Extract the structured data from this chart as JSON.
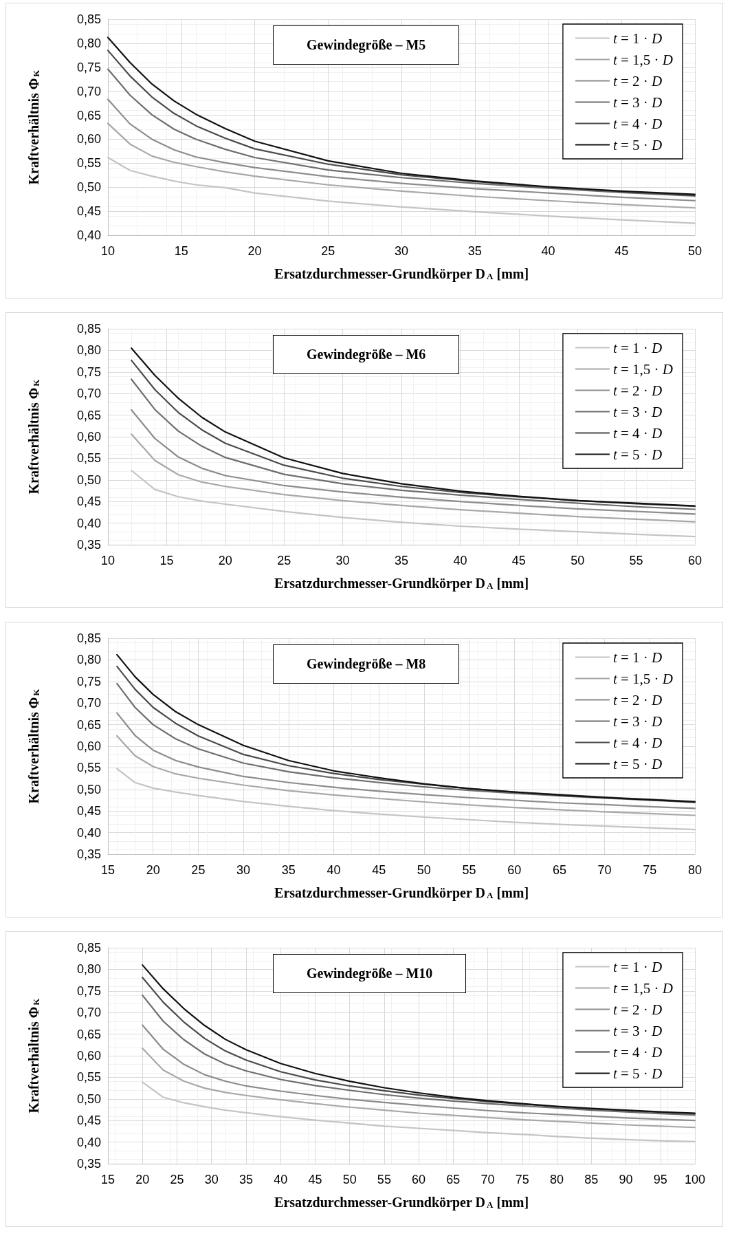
{
  "chart_data": [
    {
      "type": "line",
      "title": "Gewindegröße – M5",
      "xlabel": "Ersatzdurchmesser-Grundkörper D$_{A}$ [mm]",
      "ylabel": "Kraftverhältnis Φ$_{K}$",
      "legend": "top right",
      "grid": true,
      "line_style": "solid",
      "x": [
        10,
        11.5,
        13,
        14.5,
        16,
        18,
        20,
        25,
        30,
        35,
        40,
        45,
        50
      ],
      "xlim": [
        10,
        50
      ],
      "xticks": [
        10,
        15,
        20,
        25,
        30,
        35,
        40,
        45,
        50
      ],
      "ylim": [
        0.4,
        0.85
      ],
      "yticks": [
        {
          "value": 0.4,
          "label": "0,40"
        },
        {
          "value": 0.45,
          "label": "0,45"
        },
        {
          "value": 0.5,
          "label": "0,50"
        },
        {
          "value": 0.55,
          "label": "0,55"
        },
        {
          "value": 0.6,
          "label": "0,60"
        },
        {
          "value": 0.65,
          "label": "0,65"
        },
        {
          "value": 0.7,
          "label": "0,70"
        },
        {
          "value": 0.75,
          "label": "0,75"
        },
        {
          "value": 0.8,
          "label": "0,80"
        },
        {
          "value": 0.85,
          "label": "0,85"
        }
      ],
      "series": [
        {
          "name": "t = 1 · D",
          "color": "#c4c4c4",
          "values": [
            0.562,
            0.535,
            0.523,
            0.513,
            0.505,
            0.499,
            0.488,
            0.471,
            0.459,
            0.449,
            0.44,
            0.432,
            0.425
          ]
        },
        {
          "name": "t = 1,5 · D",
          "color": "#a8a8a8",
          "values": [
            0.633,
            0.59,
            0.565,
            0.552,
            0.543,
            0.532,
            0.523,
            0.505,
            0.492,
            0.481,
            0.472,
            0.464,
            0.457
          ]
        },
        {
          "name": "t = 2 · D",
          "color": "#8c8c8c",
          "values": [
            0.683,
            0.632,
            0.6,
            0.578,
            0.563,
            0.551,
            0.541,
            0.522,
            0.508,
            0.497,
            0.488,
            0.479,
            0.472
          ]
        },
        {
          "name": "t = 3 · D",
          "color": "#6e6e6e",
          "values": [
            0.746,
            0.692,
            0.651,
            0.621,
            0.6,
            0.579,
            0.562,
            0.536,
            0.52,
            0.508,
            0.498,
            0.489,
            0.482
          ]
        },
        {
          "name": "t = 4 · D",
          "color": "#4a4a4a",
          "values": [
            0.785,
            0.732,
            0.688,
            0.654,
            0.628,
            0.602,
            0.58,
            0.548,
            0.526,
            0.512,
            0.5,
            0.491,
            0.483
          ]
        },
        {
          "name": "t = 5 · D",
          "color": "#111111",
          "values": [
            0.812,
            0.76,
            0.715,
            0.68,
            0.652,
            0.622,
            0.596,
            0.555,
            0.529,
            0.513,
            0.501,
            0.492,
            0.485
          ]
        }
      ]
    },
    {
      "type": "line",
      "title": "Gewindegröße – M6",
      "xlabel": "Ersatzdurchmesser-Grundkörper D$_{A}$ [mm]",
      "ylabel": "Kraftverhältnis Φ$_{K}$",
      "legend": "top right",
      "grid": true,
      "line_style": "solid",
      "x": [
        12,
        14,
        16,
        18,
        20,
        25,
        30,
        35,
        40,
        45,
        50,
        55,
        60
      ],
      "xlim": [
        10,
        60
      ],
      "xticks": [
        10,
        15,
        20,
        25,
        30,
        35,
        40,
        45,
        50,
        55,
        60
      ],
      "ylim": [
        0.35,
        0.85
      ],
      "yticks": [
        {
          "value": 0.35,
          "label": "0,35"
        },
        {
          "value": 0.4,
          "label": "0,40"
        },
        {
          "value": 0.45,
          "label": "0,45"
        },
        {
          "value": 0.5,
          "label": "0,50"
        },
        {
          "value": 0.55,
          "label": "0,55"
        },
        {
          "value": 0.6,
          "label": "0,60"
        },
        {
          "value": 0.65,
          "label": "0,65"
        },
        {
          "value": 0.7,
          "label": "0,70"
        },
        {
          "value": 0.75,
          "label": "0,75"
        },
        {
          "value": 0.8,
          "label": "0,80"
        },
        {
          "value": 0.85,
          "label": "0,85"
        }
      ],
      "series": [
        {
          "name": "t = 1 · D",
          "color": "#c4c4c4",
          "values": [
            0.522,
            0.478,
            0.461,
            0.451,
            0.444,
            0.427,
            0.413,
            0.402,
            0.393,
            0.386,
            0.38,
            0.374,
            0.369
          ]
        },
        {
          "name": "t = 1,5 · D",
          "color": "#a8a8a8",
          "values": [
            0.606,
            0.545,
            0.512,
            0.495,
            0.485,
            0.466,
            0.452,
            0.441,
            0.431,
            0.423,
            0.415,
            0.409,
            0.403
          ]
        },
        {
          "name": "t = 2 · D",
          "color": "#8c8c8c",
          "values": [
            0.662,
            0.596,
            0.553,
            0.527,
            0.51,
            0.487,
            0.472,
            0.46,
            0.45,
            0.441,
            0.433,
            0.427,
            0.421
          ]
        },
        {
          "name": "t = 3 · D",
          "color": "#6e6e6e",
          "values": [
            0.733,
            0.663,
            0.613,
            0.578,
            0.552,
            0.513,
            0.491,
            0.476,
            0.465,
            0.455,
            0.446,
            0.438,
            0.432
          ]
        },
        {
          "name": "t = 4 · D",
          "color": "#4a4a4a",
          "values": [
            0.777,
            0.709,
            0.656,
            0.616,
            0.585,
            0.534,
            0.504,
            0.485,
            0.471,
            0.461,
            0.452,
            0.445,
            0.439
          ]
        },
        {
          "name": "t = 5 · D",
          "color": "#111111",
          "values": [
            0.805,
            0.742,
            0.689,
            0.645,
            0.611,
            0.551,
            0.515,
            0.491,
            0.474,
            0.462,
            0.452,
            0.446,
            0.44
          ]
        }
      ]
    },
    {
      "type": "line",
      "title": "Gewindegröße – M8",
      "xlabel": "Ersatzdurchmesser-Grundkörper D$_{A}$ [mm]",
      "ylabel": "Kraftverhältnis Φ$_{K}$",
      "legend": "top right",
      "grid": true,
      "line_style": "solid",
      "x": [
        16,
        18,
        20,
        22.5,
        25,
        30,
        35,
        40,
        45,
        50,
        55,
        60,
        65,
        70,
        75,
        80
      ],
      "xlim": [
        15,
        80
      ],
      "xticks": [
        15,
        20,
        25,
        30,
        35,
        40,
        45,
        50,
        55,
        60,
        65,
        70,
        75,
        80
      ],
      "ylim": [
        0.35,
        0.85
      ],
      "yticks": [
        {
          "value": 0.35,
          "label": "0,35"
        },
        {
          "value": 0.4,
          "label": "0,40"
        },
        {
          "value": 0.45,
          "label": "0,45"
        },
        {
          "value": 0.5,
          "label": "0,50"
        },
        {
          "value": 0.55,
          "label": "0,55"
        },
        {
          "value": 0.6,
          "label": "0,60"
        },
        {
          "value": 0.65,
          "label": "0,65"
        },
        {
          "value": 0.7,
          "label": "0,70"
        },
        {
          "value": 0.75,
          "label": "0,75"
        },
        {
          "value": 0.8,
          "label": "0,80"
        },
        {
          "value": 0.85,
          "label": "0,85"
        }
      ],
      "series": [
        {
          "name": "t = 1 · D",
          "color": "#c4c4c4",
          "values": [
            0.548,
            0.516,
            0.503,
            0.494,
            0.486,
            0.472,
            0.461,
            0.451,
            0.443,
            0.436,
            0.43,
            0.424,
            0.419,
            0.415,
            0.411,
            0.407
          ]
        },
        {
          "name": "t = 1,5 · D",
          "color": "#a8a8a8",
          "values": [
            0.624,
            0.578,
            0.553,
            0.536,
            0.526,
            0.51,
            0.497,
            0.487,
            0.479,
            0.471,
            0.464,
            0.458,
            0.453,
            0.448,
            0.444,
            0.44
          ]
        },
        {
          "name": "t = 2 · D",
          "color": "#8c8c8c",
          "values": [
            0.677,
            0.625,
            0.591,
            0.567,
            0.552,
            0.53,
            0.516,
            0.505,
            0.496,
            0.488,
            0.481,
            0.475,
            0.469,
            0.465,
            0.46,
            0.456
          ]
        },
        {
          "name": "t = 3 · D",
          "color": "#6e6e6e",
          "values": [
            0.745,
            0.69,
            0.65,
            0.617,
            0.594,
            0.561,
            0.541,
            0.527,
            0.516,
            0.506,
            0.498,
            0.491,
            0.485,
            0.48,
            0.475,
            0.47
          ]
        },
        {
          "name": "t = 4 · D",
          "color": "#4a4a4a",
          "values": [
            0.785,
            0.732,
            0.69,
            0.653,
            0.624,
            0.581,
            0.555,
            0.537,
            0.523,
            0.512,
            0.502,
            0.494,
            0.488,
            0.482,
            0.477,
            0.472
          ]
        },
        {
          "name": "t = 5 · D",
          "color": "#111111",
          "values": [
            0.812,
            0.761,
            0.72,
            0.68,
            0.65,
            0.602,
            0.567,
            0.543,
            0.527,
            0.513,
            0.502,
            0.494,
            0.487,
            0.481,
            0.476,
            0.471
          ]
        }
      ]
    },
    {
      "type": "line",
      "title": "Gewindegröße – M10",
      "xlabel": "Ersatzdurchmesser-Grundkörper D$_{A}$ [mm]",
      "ylabel": "Kraftverhältnis Φ$_{K}$",
      "legend": "top right",
      "grid": true,
      "line_style": "solid",
      "x": [
        20,
        23,
        26,
        29,
        32,
        35,
        40,
        45,
        50,
        55,
        60,
        65,
        70,
        75,
        80,
        85,
        90,
        95,
        100
      ],
      "xlim": [
        15,
        100
      ],
      "xticks": [
        15,
        20,
        25,
        30,
        35,
        40,
        45,
        50,
        55,
        60,
        65,
        70,
        75,
        80,
        85,
        90,
        95,
        100
      ],
      "ylim": [
        0.35,
        0.85
      ],
      "yticks": [
        {
          "value": 0.35,
          "label": "0,35"
        },
        {
          "value": 0.4,
          "label": "0,40"
        },
        {
          "value": 0.45,
          "label": "0,45"
        },
        {
          "value": 0.5,
          "label": "0,50"
        },
        {
          "value": 0.55,
          "label": "0,55"
        },
        {
          "value": 0.6,
          "label": "0,60"
        },
        {
          "value": 0.65,
          "label": "0,65"
        },
        {
          "value": 0.7,
          "label": "0,70"
        },
        {
          "value": 0.75,
          "label": "0,75"
        },
        {
          "value": 0.8,
          "label": "0,80"
        },
        {
          "value": 0.85,
          "label": "0,85"
        }
      ],
      "series": [
        {
          "name": "t = 1 · D",
          "color": "#c4c4c4",
          "values": [
            0.539,
            0.504,
            0.491,
            0.482,
            0.474,
            0.468,
            0.459,
            0.451,
            0.444,
            0.437,
            0.432,
            0.427,
            0.422,
            0.418,
            0.413,
            0.409,
            0.406,
            0.403,
            0.401
          ]
        },
        {
          "name": "t = 1,5 · D",
          "color": "#a8a8a8",
          "values": [
            0.617,
            0.567,
            0.541,
            0.525,
            0.515,
            0.508,
            0.498,
            0.489,
            0.481,
            0.474,
            0.467,
            0.462,
            0.457,
            0.452,
            0.448,
            0.444,
            0.44,
            0.437,
            0.434
          ]
        },
        {
          "name": "t = 2 · D",
          "color": "#8c8c8c",
          "values": [
            0.671,
            0.615,
            0.58,
            0.556,
            0.541,
            0.53,
            0.518,
            0.508,
            0.499,
            0.492,
            0.485,
            0.479,
            0.473,
            0.468,
            0.464,
            0.46,
            0.456,
            0.453,
            0.45
          ]
        },
        {
          "name": "t = 3 · D",
          "color": "#6e6e6e",
          "values": [
            0.74,
            0.68,
            0.637,
            0.604,
            0.581,
            0.565,
            0.545,
            0.531,
            0.52,
            0.51,
            0.502,
            0.495,
            0.489,
            0.484,
            0.479,
            0.474,
            0.47,
            0.466,
            0.463
          ]
        },
        {
          "name": "t = 4 · D",
          "color": "#4a4a4a",
          "values": [
            0.781,
            0.724,
            0.678,
            0.64,
            0.611,
            0.59,
            0.563,
            0.544,
            0.53,
            0.519,
            0.509,
            0.501,
            0.494,
            0.488,
            0.482,
            0.477,
            0.473,
            0.469,
            0.466
          ]
        },
        {
          "name": "t = 5 · D",
          "color": "#111111",
          "values": [
            0.81,
            0.755,
            0.709,
            0.67,
            0.638,
            0.614,
            0.582,
            0.559,
            0.541,
            0.526,
            0.514,
            0.504,
            0.496,
            0.489,
            0.483,
            0.478,
            0.474,
            0.47,
            0.467
          ]
        }
      ]
    }
  ]
}
